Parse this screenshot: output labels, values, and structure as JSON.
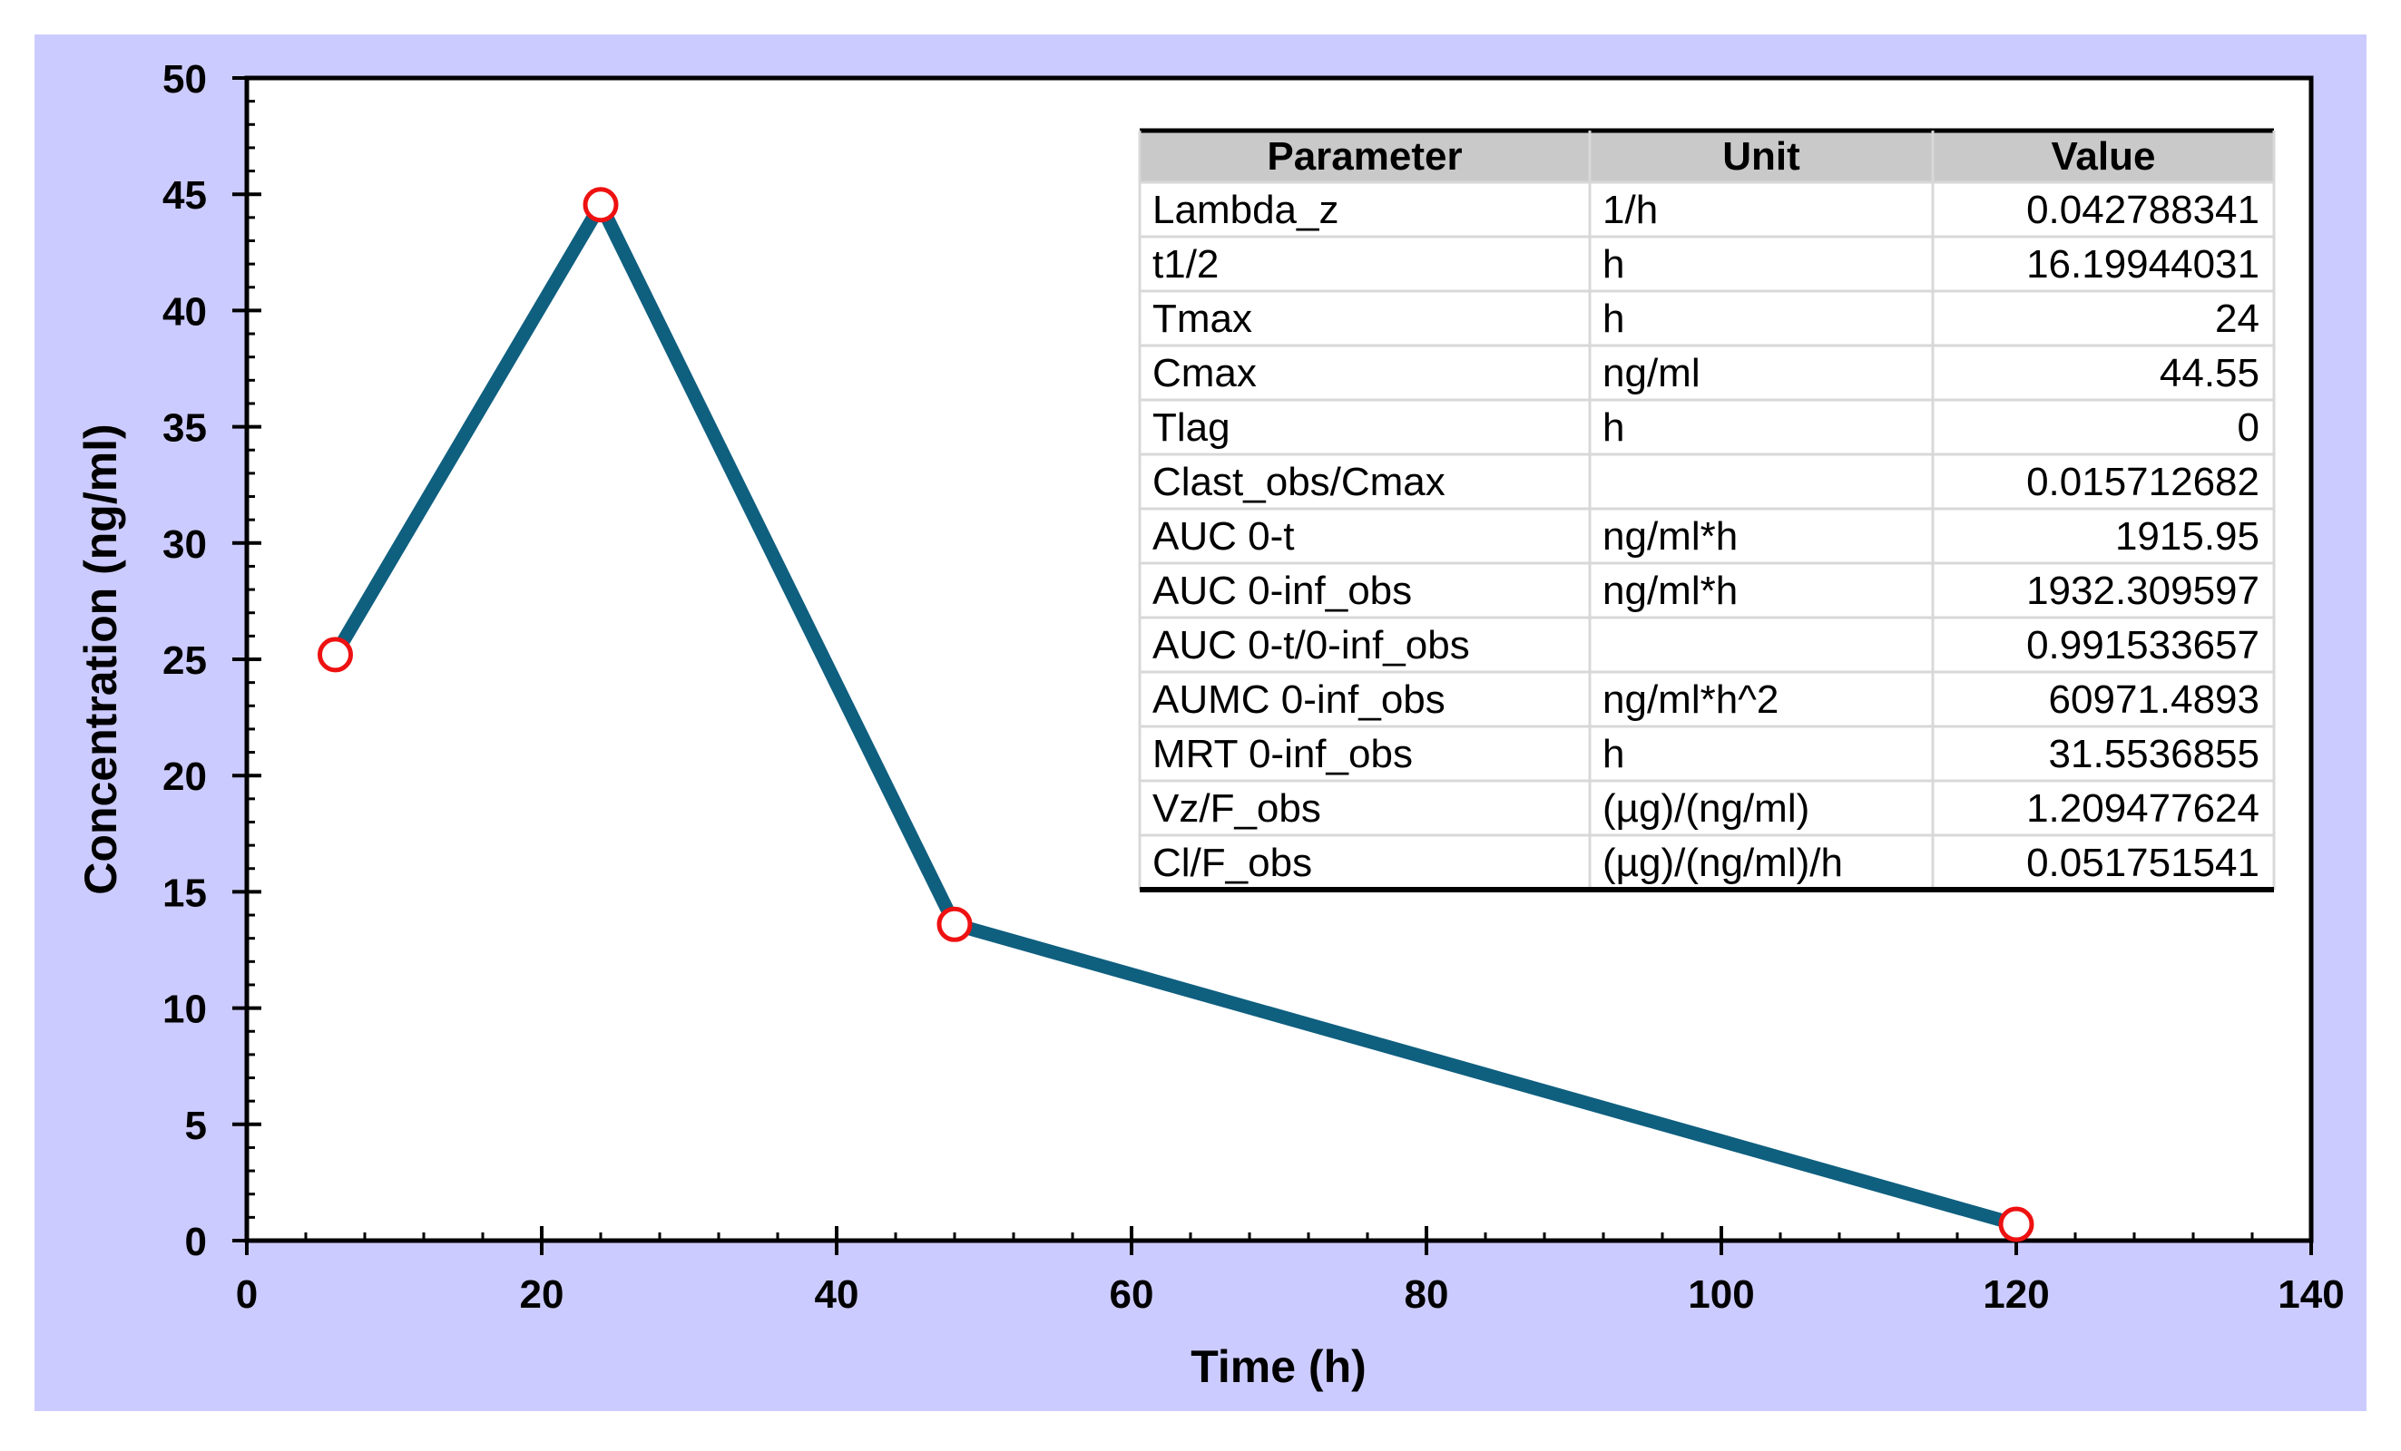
{
  "colors": {
    "background": "#ffffff",
    "frame": "#cccbff",
    "line": "#0f5f7f",
    "marker_edge": "#ee1111",
    "marker_fill": "#ffffff",
    "table_header": "#c9c9c9",
    "table_grid": "#d8d8d8"
  },
  "chart_data": {
    "type": "line",
    "title": "",
    "xlabel": "Time (h)",
    "ylabel": "Concentration (ng/ml)",
    "xlim": [
      0,
      140
    ],
    "ylim": [
      0,
      50
    ],
    "xticks": [
      0,
      20,
      40,
      60,
      80,
      100,
      120,
      140
    ],
    "yticks": [
      0,
      5,
      10,
      15,
      20,
      25,
      30,
      35,
      40,
      45,
      50
    ],
    "grid": false,
    "series": [
      {
        "name": "Concentration",
        "x": [
          6,
          24,
          48,
          120
        ],
        "y": [
          25.2,
          44.55,
          13.6,
          0.7
        ]
      }
    ]
  },
  "table": {
    "headers": [
      "Parameter",
      "Unit",
      "Value"
    ],
    "rows": [
      [
        "Lambda_z",
        "1/h",
        "0.042788341"
      ],
      [
        "t1/2",
        "h",
        "16.19944031"
      ],
      [
        "Tmax",
        "h",
        "24"
      ],
      [
        "Cmax",
        "ng/ml",
        "44.55"
      ],
      [
        "Tlag",
        "h",
        "0"
      ],
      [
        "Clast_obs/Cmax",
        "",
        "0.015712682"
      ],
      [
        "AUC 0-t",
        "ng/ml*h",
        "1915.95"
      ],
      [
        "AUC 0-inf_obs",
        "ng/ml*h",
        "1932.309597"
      ],
      [
        "AUC 0-t/0-inf_obs",
        "",
        "0.991533657"
      ],
      [
        "AUMC 0-inf_obs",
        "ng/ml*h^2",
        "60971.4893"
      ],
      [
        "MRT 0-inf_obs",
        "h",
        "31.5536855"
      ],
      [
        "Vz/F_obs",
        "(µg)/(ng/ml)",
        "1.209477624"
      ],
      [
        "Cl/F_obs",
        "(µg)/(ng/ml)/h",
        "0.051751541"
      ]
    ]
  }
}
